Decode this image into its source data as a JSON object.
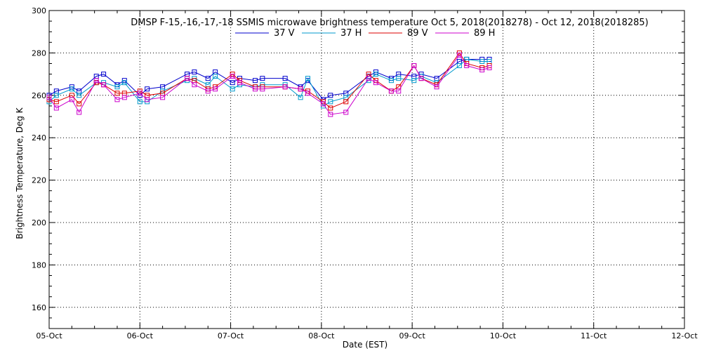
{
  "chart_data": {
    "type": "line",
    "title": "DMSP F-15,-16,-17,-18 SSMIS microwave brightness temperature Oct  5, 2018(2018278) - Oct 12, 2018(2018285)",
    "xlabel": "Date (EST)",
    "ylabel": "Brightness Temperature, Deg K",
    "x_ticks": [
      "05-Oct",
      "06-Oct",
      "07-Oct",
      "08-Oct",
      "09-Oct",
      "10-Oct",
      "11-Oct",
      "12-Oct"
    ],
    "y_ticks": [
      160,
      180,
      200,
      220,
      240,
      260,
      280,
      300
    ],
    "xlim": [
      0,
      7
    ],
    "ylim": [
      150,
      300
    ],
    "x_unit": "days since 05-Oct 00:00 EST",
    "grid": true,
    "legend_position": "top-center",
    "x": [
      0.0,
      0.08,
      0.25,
      0.33,
      0.52,
      0.6,
      0.75,
      0.83,
      1.0,
      1.08,
      1.25,
      1.52,
      1.6,
      1.75,
      1.83,
      2.02,
      2.1,
      2.27,
      2.35,
      2.6,
      2.77,
      2.85,
      3.02,
      3.1,
      3.27,
      3.52,
      3.6,
      3.77,
      3.85,
      4.02,
      4.1,
      4.27,
      4.52,
      4.6,
      4.77,
      4.85
    ],
    "series": [
      {
        "name": "37 V",
        "color": "#0000cc",
        "values": [
          260,
          262,
          264,
          262,
          269,
          270,
          265,
          267,
          260,
          263,
          264,
          270,
          271,
          268,
          271,
          266,
          268,
          267,
          268,
          268,
          264,
          267,
          258,
          260,
          261,
          269,
          271,
          268,
          270,
          269,
          270,
          268,
          276,
          277,
          277,
          277
        ]
      },
      {
        "name": "37 H",
        "color": "#0099cc",
        "values": [
          257,
          260,
          263,
          260,
          266,
          266,
          264,
          266,
          257,
          257,
          262,
          267,
          268,
          265,
          269,
          263,
          265,
          264,
          265,
          265,
          259,
          268,
          255,
          257,
          259,
          267,
          270,
          267,
          268,
          267,
          269,
          266,
          274,
          277,
          276,
          276
        ]
      },
      {
        "name": "89 V",
        "color": "#dd0000",
        "values": [
          258,
          257,
          260,
          256,
          266,
          265,
          261,
          261,
          262,
          260,
          261,
          268,
          267,
          263,
          264,
          270,
          267,
          264,
          264,
          264,
          263,
          262,
          257,
          254,
          257,
          270,
          267,
          262,
          264,
          274,
          268,
          265,
          280,
          275,
          273,
          274
        ]
      },
      {
        "name": "89 H",
        "color": "#cc00cc",
        "values": [
          259,
          254,
          258,
          252,
          267,
          265,
          258,
          259,
          261,
          258,
          259,
          268,
          265,
          262,
          263,
          269,
          266,
          263,
          263,
          264,
          263,
          261,
          256,
          251,
          252,
          268,
          266,
          262,
          262,
          274,
          268,
          264,
          279,
          274,
          272,
          273
        ]
      }
    ]
  }
}
